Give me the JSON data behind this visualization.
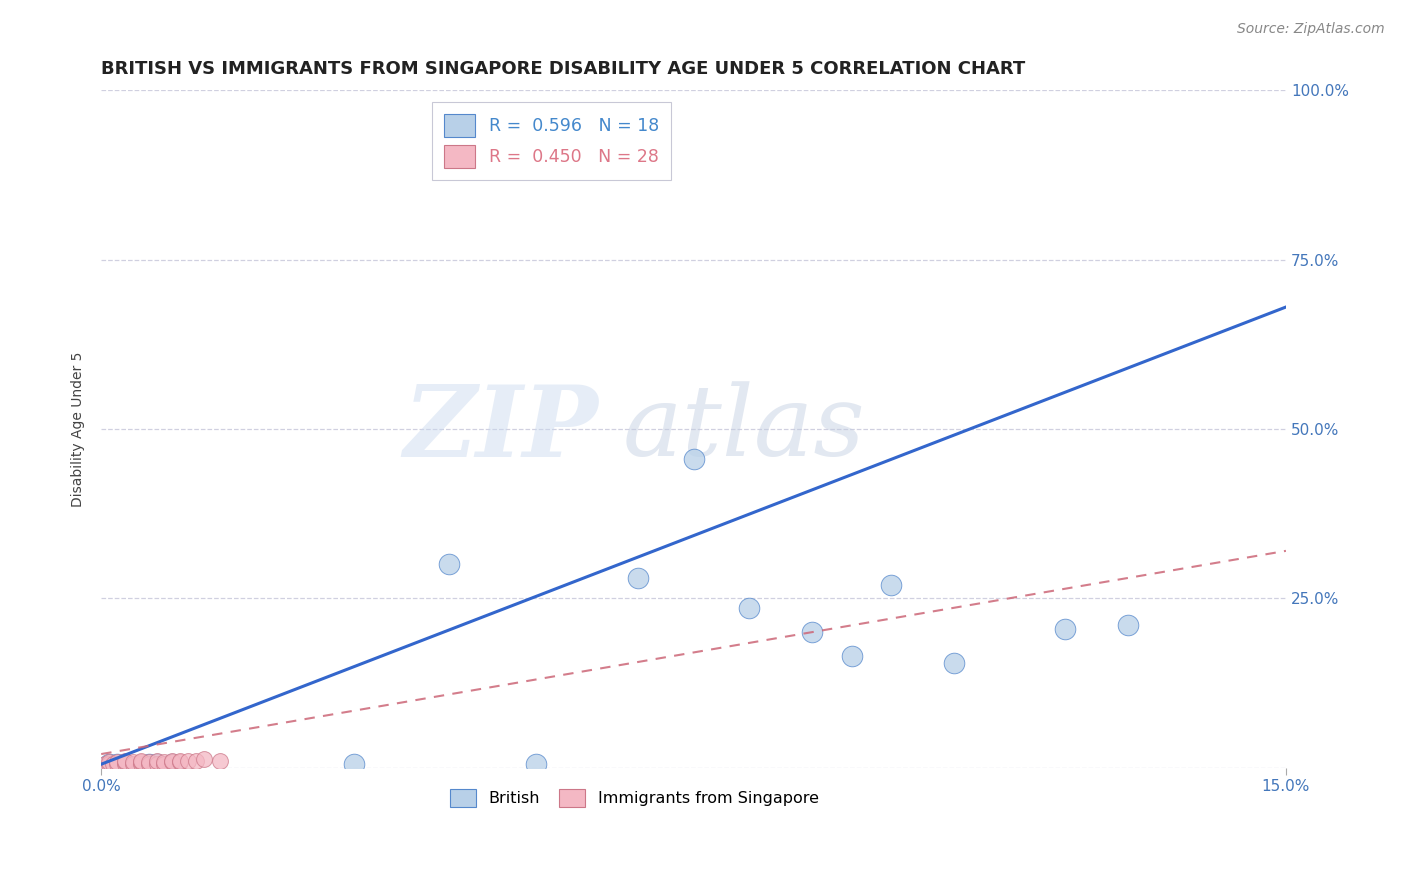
{
  "title": "BRITISH VS IMMIGRANTS FROM SINGAPORE DISABILITY AGE UNDER 5 CORRELATION CHART",
  "source": "Source: ZipAtlas.com",
  "xlabel": "",
  "ylabel": "Disability Age Under 5",
  "xlim": [
    0.0,
    0.15
  ],
  "ylim": [
    0.0,
    1.0
  ],
  "xtick_positions": [
    0.0,
    0.15
  ],
  "xtick_labels": [
    "0.0%",
    "15.0%"
  ],
  "yticks_right": [
    0.25,
    0.5,
    0.75,
    1.0
  ],
  "ytick_labels_right": [
    "25.0%",
    "50.0%",
    "75.0%",
    "100.0%"
  ],
  "british_R": 0.596,
  "british_N": 18,
  "singapore_R": 0.45,
  "singapore_N": 28,
  "british_color": "#b8d0e8",
  "british_edge_color": "#5588cc",
  "british_line_color": "#3366cc",
  "singapore_color": "#f4b8c4",
  "singapore_edge_color": "#cc7788",
  "singapore_line_color": "#cc6677",
  "british_x": [
    0.001,
    0.002,
    0.003,
    0.006,
    0.007,
    0.009,
    0.032,
    0.044,
    0.055,
    0.068,
    0.075,
    0.082,
    0.09,
    0.095,
    0.1,
    0.108,
    0.122,
    0.13
  ],
  "british_y": [
    0.005,
    0.005,
    0.005,
    0.005,
    0.005,
    0.005,
    0.005,
    0.3,
    0.005,
    0.28,
    0.455,
    0.235,
    0.2,
    0.165,
    0.27,
    0.155,
    0.205,
    0.21
  ],
  "singapore_x": [
    0.0005,
    0.001,
    0.001,
    0.0015,
    0.002,
    0.002,
    0.003,
    0.003,
    0.003,
    0.004,
    0.004,
    0.005,
    0.005,
    0.005,
    0.006,
    0.006,
    0.007,
    0.007,
    0.008,
    0.008,
    0.009,
    0.009,
    0.01,
    0.01,
    0.011,
    0.012,
    0.013,
    0.015
  ],
  "singapore_y": [
    0.005,
    0.005,
    0.008,
    0.005,
    0.005,
    0.008,
    0.005,
    0.008,
    0.01,
    0.005,
    0.008,
    0.005,
    0.008,
    0.01,
    0.005,
    0.008,
    0.005,
    0.01,
    0.005,
    0.008,
    0.008,
    0.01,
    0.008,
    0.01,
    0.01,
    0.01,
    0.012,
    0.01
  ],
  "background_color": "#ffffff",
  "grid_color": "#d0d0e0",
  "watermark_zip": "ZIP",
  "watermark_atlas": "atlas",
  "legend_R_color_british": "#4488cc",
  "legend_N_color_british": "#4488cc",
  "legend_R_color_singapore": "#dd7788",
  "legend_N_color_singapore": "#dd7788",
  "title_fontsize": 13,
  "source_fontsize": 10,
  "axis_label_fontsize": 10,
  "tick_fontsize": 11
}
